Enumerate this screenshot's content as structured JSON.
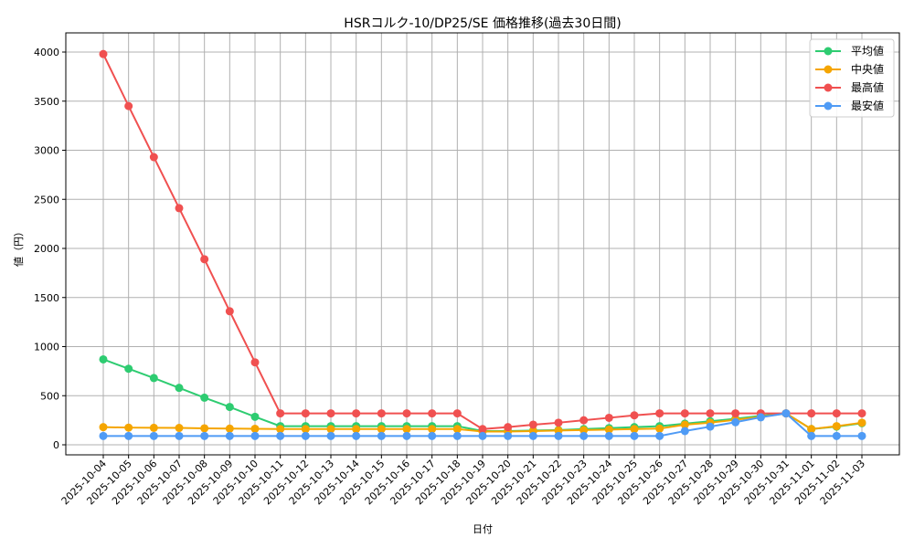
{
  "chart_data": {
    "type": "line",
    "title": "HSRコルク-10/DP25/SE 価格推移(過去30日間)",
    "xlabel": "日付",
    "ylabel": "値（円）",
    "ylim": [
      -100,
      4200
    ],
    "yticks": [
      0,
      500,
      1000,
      1500,
      2000,
      2500,
      3000,
      3500,
      4000
    ],
    "grid": true,
    "legend_position": "upper right",
    "categories": [
      "2025-10-04",
      "2025-10-05",
      "2025-10-06",
      "2025-10-07",
      "2025-10-08",
      "2025-10-09",
      "2025-10-10",
      "2025-10-11",
      "2025-10-12",
      "2025-10-13",
      "2025-10-14",
      "2025-10-15",
      "2025-10-16",
      "2025-10-17",
      "2025-10-18",
      "2025-10-19",
      "2025-10-20",
      "2025-10-21",
      "2025-10-22",
      "2025-10-23",
      "2025-10-24",
      "2025-10-25",
      "2025-10-26",
      "2025-10-27",
      "2025-10-28",
      "2025-10-29",
      "2025-10-30",
      "2025-10-31",
      "2025-11-01",
      "2025-11-02",
      "2025-11-03"
    ],
    "series": [
      {
        "name": "平均値",
        "color": "#2ecc71",
        "values": [
          870,
          775,
          680,
          580,
          480,
          385,
          285,
          190,
          190,
          190,
          190,
          190,
          190,
          190,
          190,
          140,
          140,
          145,
          150,
          160,
          170,
          180,
          190,
          215,
          240,
          265,
          295,
          320,
          160,
          185,
          220
        ]
      },
      {
        "name": "中央値",
        "color": "#f5a500",
        "values": [
          180,
          175,
          173,
          172,
          168,
          165,
          163,
          160,
          160,
          160,
          160,
          160,
          160,
          160,
          160,
          135,
          135,
          140,
          145,
          150,
          155,
          160,
          165,
          205,
          225,
          255,
          285,
          320,
          160,
          190,
          225
        ]
      },
      {
        "name": "最高値",
        "color": "#f05050",
        "values": [
          3980,
          3450,
          2930,
          2410,
          1890,
          1360,
          840,
          320,
          320,
          320,
          320,
          320,
          320,
          320,
          320,
          160,
          180,
          205,
          225,
          250,
          275,
          300,
          320,
          320,
          320,
          320,
          320,
          320,
          320,
          320,
          320
        ]
      },
      {
        "name": "最安値",
        "color": "#4f9bf5",
        "values": [
          90,
          90,
          90,
          90,
          90,
          90,
          90,
          90,
          90,
          90,
          90,
          90,
          90,
          90,
          90,
          90,
          90,
          90,
          90,
          90,
          90,
          90,
          90,
          140,
          185,
          230,
          280,
          320,
          90,
          90,
          90
        ]
      }
    ]
  }
}
